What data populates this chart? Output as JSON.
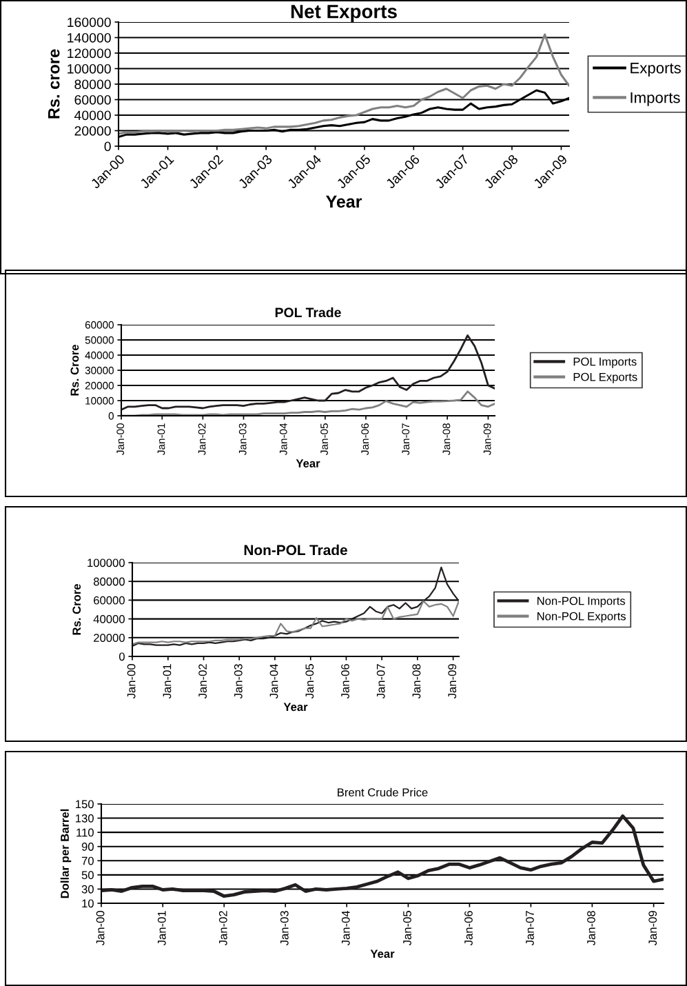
{
  "chart_data": [
    {
      "type": "line",
      "title": "Net Exports",
      "xlabel": "Year",
      "ylabel": "Rs. crore",
      "grid": "y",
      "legend": "right",
      "x": [
        "2000-01",
        "2000-03",
        "2000-05",
        "2000-07",
        "2000-09",
        "2000-11",
        "2001-01",
        "2001-03",
        "2001-05",
        "2001-07",
        "2001-09",
        "2001-11",
        "2002-01",
        "2002-03",
        "2002-05",
        "2002-07",
        "2002-09",
        "2002-11",
        "2003-01",
        "2003-03",
        "2003-05",
        "2003-07",
        "2003-09",
        "2003-11",
        "2004-01",
        "2004-03",
        "2004-05",
        "2004-07",
        "2004-09",
        "2004-11",
        "2005-01",
        "2005-03",
        "2005-05",
        "2005-07",
        "2005-09",
        "2005-11",
        "2006-01",
        "2006-03",
        "2006-05",
        "2006-07",
        "2006-09",
        "2006-11",
        "2007-01",
        "2007-03",
        "2007-05",
        "2007-07",
        "2007-09",
        "2007-11",
        "2008-01",
        "2008-03",
        "2008-05",
        "2008-07",
        "2008-09",
        "2008-11",
        "2009-01",
        "2009-03"
      ],
      "xlim": [
        "2000-01",
        "2009-03"
      ],
      "xticks": [
        {
          "value": "2000-01",
          "label": "Jan-00"
        },
        {
          "value": "2001-01",
          "label": "Jan-01"
        },
        {
          "value": "2002-01",
          "label": "Jan-02"
        },
        {
          "value": "2003-01",
          "label": "Jan-03"
        },
        {
          "value": "2004-01",
          "label": "Jan-04"
        },
        {
          "value": "2005-01",
          "label": "Jan-05"
        },
        {
          "value": "2006-01",
          "label": "Jan-06"
        },
        {
          "value": "2007-01",
          "label": "Jan-07"
        },
        {
          "value": "2008-01",
          "label": "Jan-08"
        },
        {
          "value": "2009-01",
          "label": "Jan-09"
        }
      ],
      "ylim": [
        0,
        160000
      ],
      "yticks": [
        0,
        20000,
        40000,
        60000,
        80000,
        100000,
        120000,
        140000,
        160000
      ],
      "series": [
        {
          "name": "Exports",
          "color": "#000000",
          "values": [
            12000,
            15000,
            15000,
            16000,
            17000,
            17000,
            16000,
            17000,
            15000,
            16000,
            17000,
            17000,
            18000,
            17000,
            17000,
            19000,
            20000,
            20000,
            20000,
            21000,
            19000,
            21000,
            21000,
            22000,
            24000,
            26000,
            27000,
            26000,
            28000,
            30000,
            31000,
            35000,
            33000,
            33000,
            36000,
            38000,
            41000,
            43000,
            48000,
            50000,
            48000,
            47000,
            47000,
            55000,
            48000,
            50000,
            51000,
            53000,
            54000,
            60000,
            66000,
            72000,
            69000,
            55000,
            58000,
            62000
          ]
        },
        {
          "name": "Imports",
          "color": "#808080",
          "values": [
            16000,
            18000,
            18000,
            19000,
            19000,
            20000,
            19000,
            19000,
            20000,
            19000,
            20000,
            20000,
            20000,
            21000,
            21000,
            22000,
            23000,
            24000,
            23000,
            25000,
            25000,
            25000,
            26000,
            28000,
            30000,
            33000,
            34000,
            37000,
            39000,
            40000,
            44000,
            48000,
            50000,
            50000,
            52000,
            50000,
            52000,
            60000,
            64000,
            70000,
            74000,
            68000,
            62000,
            72000,
            77000,
            78000,
            74000,
            80000,
            78000,
            88000,
            102000,
            115000,
            144000,
            115000,
            92000,
            78000
          ]
        }
      ]
    },
    {
      "type": "line",
      "title": "POL Trade",
      "xlabel": "Year",
      "ylabel": "Rs. Crore",
      "grid": "y",
      "legend": "right",
      "x": [
        "2000-01",
        "2000-03",
        "2000-05",
        "2000-07",
        "2000-09",
        "2000-11",
        "2001-01",
        "2001-03",
        "2001-05",
        "2001-07",
        "2001-09",
        "2001-11",
        "2002-01",
        "2002-03",
        "2002-05",
        "2002-07",
        "2002-09",
        "2002-11",
        "2003-01",
        "2003-03",
        "2003-05",
        "2003-07",
        "2003-09",
        "2003-11",
        "2004-01",
        "2004-03",
        "2004-05",
        "2004-07",
        "2004-09",
        "2004-11",
        "2005-01",
        "2005-03",
        "2005-05",
        "2005-07",
        "2005-09",
        "2005-11",
        "2006-01",
        "2006-03",
        "2006-05",
        "2006-07",
        "2006-09",
        "2006-11",
        "2007-01",
        "2007-03",
        "2007-05",
        "2007-07",
        "2007-09",
        "2007-11",
        "2008-01",
        "2008-03",
        "2008-05",
        "2008-07",
        "2008-09",
        "2008-11",
        "2009-01",
        "2009-03"
      ],
      "xlim": [
        "2000-01",
        "2009-03"
      ],
      "xticks": [
        {
          "value": "2000-01",
          "label": "Jan-00"
        },
        {
          "value": "2001-01",
          "label": "Jan-01"
        },
        {
          "value": "2002-01",
          "label": "Jan-02"
        },
        {
          "value": "2003-01",
          "label": "Jan-03"
        },
        {
          "value": "2004-01",
          "label": "Jan-04"
        },
        {
          "value": "2005-01",
          "label": "Jan-05"
        },
        {
          "value": "2006-01",
          "label": "Jan-06"
        },
        {
          "value": "2007-01",
          "label": "Jan-07"
        },
        {
          "value": "2008-01",
          "label": "Jan-08"
        },
        {
          "value": "2009-01",
          "label": "Jan-09"
        }
      ],
      "ylim": [
        0,
        60000
      ],
      "yticks": [
        0,
        10000,
        20000,
        30000,
        40000,
        50000,
        60000
      ],
      "series": [
        {
          "name": "POL Imports",
          "color": "#231f20",
          "values": [
            4000,
            6000,
            6000,
            6500,
            7000,
            7000,
            5000,
            5000,
            6000,
            6000,
            6000,
            5500,
            5000,
            6000,
            6500,
            7000,
            7000,
            7000,
            6500,
            7500,
            8000,
            8000,
            8500,
            9000,
            9000,
            10000,
            11000,
            12000,
            11000,
            10000,
            10000,
            14500,
            15000,
            17000,
            16000,
            16000,
            18500,
            20000,
            22000,
            23000,
            25000,
            19000,
            17000,
            21000,
            23000,
            23000,
            25000,
            26000,
            29000,
            36000,
            44000,
            53000,
            46000,
            35000,
            20000,
            18000
          ]
        },
        {
          "name": "POL Exports",
          "color": "#808080",
          "values": [
            0,
            0,
            0,
            500,
            500,
            1000,
            1000,
            1000,
            1000,
            500,
            500,
            500,
            500,
            1000,
            1000,
            500,
            1000,
            1000,
            1000,
            1000,
            1000,
            1500,
            1500,
            1500,
            1500,
            2000,
            2000,
            2500,
            2500,
            3000,
            2500,
            3000,
            3000,
            3500,
            4500,
            4000,
            5000,
            5500,
            7000,
            9700,
            8000,
            7000,
            6000,
            9000,
            8500,
            9000,
            9500,
            9500,
            9700,
            10000,
            10500,
            16000,
            12000,
            7000,
            6000,
            8000
          ]
        }
      ]
    },
    {
      "type": "line",
      "title": "Non-POL Trade",
      "xlabel": "Year",
      "ylabel": "Rs. Crore",
      "grid": "y",
      "legend": "right",
      "x": [
        "2000-01",
        "2000-03",
        "2000-05",
        "2000-07",
        "2000-09",
        "2000-11",
        "2001-01",
        "2001-03",
        "2001-05",
        "2001-07",
        "2001-09",
        "2001-11",
        "2002-01",
        "2002-03",
        "2002-05",
        "2002-07",
        "2002-09",
        "2002-11",
        "2003-01",
        "2003-03",
        "2003-05",
        "2003-07",
        "2003-09",
        "2003-11",
        "2004-01",
        "2004-03",
        "2004-05",
        "2004-07",
        "2004-09",
        "2004-11",
        "2005-01",
        "2005-03",
        "2005-05",
        "2005-07",
        "2005-09",
        "2005-11",
        "2006-01",
        "2006-03",
        "2006-05",
        "2006-07",
        "2006-09",
        "2006-11",
        "2007-01",
        "2007-03",
        "2007-05",
        "2007-07",
        "2007-09",
        "2007-11",
        "2008-01",
        "2008-03",
        "2008-05",
        "2008-07",
        "2008-09",
        "2008-11",
        "2009-01",
        "2009-03"
      ],
      "xlim": [
        "2000-01",
        "2009-03"
      ],
      "xticks": [
        {
          "value": "2000-01",
          "label": "Jan-00"
        },
        {
          "value": "2001-01",
          "label": "Jan-01"
        },
        {
          "value": "2002-01",
          "label": "Jan-02"
        },
        {
          "value": "2003-01",
          "label": "Jan-03"
        },
        {
          "value": "2004-01",
          "label": "Jan-04"
        },
        {
          "value": "2005-01",
          "label": "Jan-05"
        },
        {
          "value": "2006-01",
          "label": "Jan-06"
        },
        {
          "value": "2007-01",
          "label": "Jan-07"
        },
        {
          "value": "2008-01",
          "label": "Jan-08"
        },
        {
          "value": "2009-01",
          "label": "Jan-09"
        }
      ],
      "ylim": [
        0,
        100000
      ],
      "yticks": [
        0,
        20000,
        40000,
        60000,
        80000,
        100000
      ],
      "series": [
        {
          "name": "Non-POL Imports",
          "color": "#231f20",
          "values": [
            11000,
            14000,
            13000,
            13000,
            12000,
            12000,
            12000,
            13000,
            12000,
            14000,
            13000,
            14000,
            14000,
            15000,
            14000,
            15000,
            16000,
            16000,
            17000,
            18000,
            17000,
            19000,
            19000,
            20000,
            22000,
            25000,
            24000,
            26000,
            27000,
            30000,
            33000,
            35000,
            38000,
            36000,
            37000,
            36000,
            37000,
            40000,
            43000,
            46000,
            53000,
            48000,
            46000,
            53000,
            55000,
            51000,
            57000,
            51000,
            53000,
            59000,
            64000,
            73000,
            95000,
            77000,
            67000,
            59000
          ]
        },
        {
          "name": "Non-POL Exports",
          "color": "#808080",
          "values": [
            13000,
            15000,
            15000,
            15000,
            15000,
            16000,
            15000,
            16000,
            16000,
            15000,
            16000,
            16000,
            16000,
            16000,
            17000,
            17000,
            18000,
            18000,
            18000,
            19000,
            19000,
            20000,
            21000,
            22000,
            22000,
            35000,
            27000,
            26000,
            28000,
            30000,
            30000,
            41000,
            32000,
            33000,
            34000,
            35000,
            40000,
            38000,
            40000,
            39000,
            40000,
            40000,
            40000,
            53000,
            40000,
            42000,
            43000,
            44000,
            45000,
            59000,
            53000,
            55000,
            56000,
            53000,
            43000,
            59000
          ]
        }
      ]
    },
    {
      "type": "line",
      "title": "Brent Crude Price",
      "xlabel": "Year",
      "ylabel": "Dollar per Barrel",
      "grid": "y",
      "x": [
        "2000-01",
        "2000-03",
        "2000-05",
        "2000-07",
        "2000-09",
        "2000-11",
        "2001-01",
        "2001-03",
        "2001-05",
        "2001-07",
        "2001-09",
        "2001-11",
        "2002-01",
        "2002-03",
        "2002-05",
        "2002-07",
        "2002-09",
        "2002-11",
        "2003-01",
        "2003-03",
        "2003-05",
        "2003-07",
        "2003-09",
        "2003-11",
        "2004-01",
        "2004-03",
        "2004-05",
        "2004-07",
        "2004-09",
        "2004-11",
        "2005-01",
        "2005-03",
        "2005-05",
        "2005-07",
        "2005-09",
        "2005-11",
        "2006-01",
        "2006-03",
        "2006-05",
        "2006-07",
        "2006-09",
        "2006-11",
        "2007-01",
        "2007-03",
        "2007-05",
        "2007-07",
        "2007-09",
        "2007-11",
        "2008-01",
        "2008-03",
        "2008-05",
        "2008-07",
        "2008-09",
        "2008-11",
        "2009-01",
        "2009-03"
      ],
      "xlim": [
        "2000-01",
        "2009-03"
      ],
      "xticks": [
        {
          "value": "2000-01",
          "label": "Jan-00"
        },
        {
          "value": "2001-01",
          "label": "Jan-01"
        },
        {
          "value": "2002-01",
          "label": "Jan-02"
        },
        {
          "value": "2003-01",
          "label": "Jan-03"
        },
        {
          "value": "2004-01",
          "label": "Jan-04"
        },
        {
          "value": "2005-01",
          "label": "Jan-05"
        },
        {
          "value": "2006-01",
          "label": "Jan-06"
        },
        {
          "value": "2007-01",
          "label": "Jan-07"
        },
        {
          "value": "2008-01",
          "label": "Jan-08"
        },
        {
          "value": "2009-01",
          "label": "Jan-09"
        }
      ],
      "ylim": [
        10,
        150
      ],
      "yticks": [
        10,
        30,
        50,
        70,
        90,
        110,
        130,
        150
      ],
      "series": [
        {
          "color": "#231f20",
          "values": [
            28,
            29,
            27,
            32,
            34,
            34,
            29,
            30,
            28,
            28,
            28,
            27,
            20,
            22,
            26,
            27,
            28,
            27,
            31,
            36,
            27,
            30,
            29,
            30,
            31,
            33,
            37,
            41,
            48,
            54,
            45,
            49,
            56,
            59,
            65,
            65,
            60,
            64,
            69,
            74,
            67,
            60,
            57,
            62,
            65,
            67,
            76,
            87,
            96,
            95,
            113,
            133,
            116,
            64,
            41,
            44
          ]
        }
      ]
    }
  ]
}
